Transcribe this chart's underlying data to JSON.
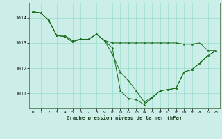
{
  "title": "Graphe pression niveau de la mer (hPa)",
  "bg_color": "#cceee8",
  "grid_color": "#99ddcc",
  "line_color": "#1a6b1a",
  "marker_color": "#1a6b1a",
  "xlim": [
    -0.5,
    23.5
  ],
  "ylim": [
    1010.4,
    1014.6
  ],
  "yticks": [
    1011,
    1012,
    1013,
    1014
  ],
  "xticks": [
    0,
    1,
    2,
    3,
    4,
    5,
    6,
    7,
    8,
    9,
    10,
    11,
    12,
    13,
    14,
    15,
    16,
    17,
    18,
    19,
    20,
    21,
    22,
    23
  ],
  "series": [
    [
      1014.25,
      1014.2,
      1013.9,
      1013.3,
      1013.3,
      1013.1,
      1013.15,
      1013.15,
      1013.35,
      1013.1,
      1013.0,
      1013.0,
      1013.0,
      1013.0,
      1013.0,
      1013.0,
      1013.0,
      1013.0,
      1013.0,
      1012.95,
      1012.95,
      1013.0,
      1012.7,
      1012.7
    ],
    [
      1014.25,
      1014.2,
      1013.9,
      1013.3,
      1013.25,
      1013.05,
      1013.15,
      1013.15,
      1013.35,
      1013.1,
      1012.55,
      1011.85,
      1011.5,
      1011.1,
      1010.65,
      1010.85,
      1011.1,
      1011.15,
      1011.2,
      1011.85,
      1011.95,
      1012.2,
      1012.5,
      1012.7
    ],
    [
      1014.25,
      1014.2,
      1013.9,
      1013.3,
      1013.25,
      1013.05,
      1013.15,
      1013.15,
      1013.35,
      1013.1,
      1012.8,
      1011.1,
      1010.8,
      1010.75,
      1010.55,
      1010.82,
      1011.1,
      1011.15,
      1011.2,
      1011.85,
      1011.95,
      1012.2,
      1012.5,
      1012.7
    ]
  ]
}
